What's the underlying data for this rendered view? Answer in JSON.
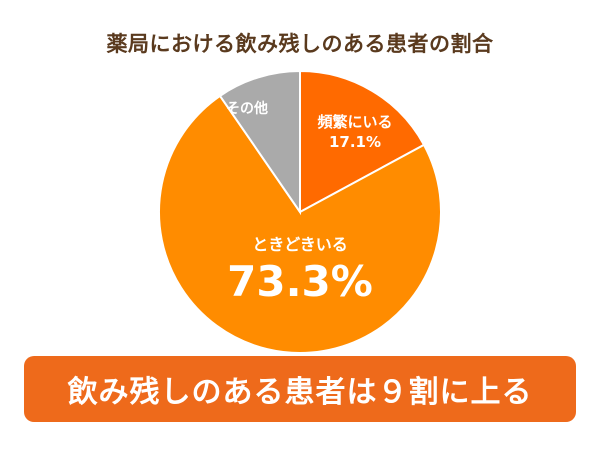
{
  "chart_data": {
    "type": "pie",
    "title": "薬局における飲み残しのある患者の割合",
    "slices": [
      {
        "label": "頻繁にいる",
        "value": 17.1,
        "value_label": "17.1%",
        "color": "#ff6a00"
      },
      {
        "label": "ときどきいる",
        "value": 73.3,
        "value_label": "73.3%",
        "color": "#ff8c00"
      },
      {
        "label": "その他",
        "value": 9.6,
        "value_label": "",
        "color": "#aaaaaa"
      }
    ],
    "start_angle_deg": 0,
    "direction": "clockwise",
    "legend": "none"
  },
  "banner": {
    "text": "飲み残しのある患者は９割に上る"
  }
}
